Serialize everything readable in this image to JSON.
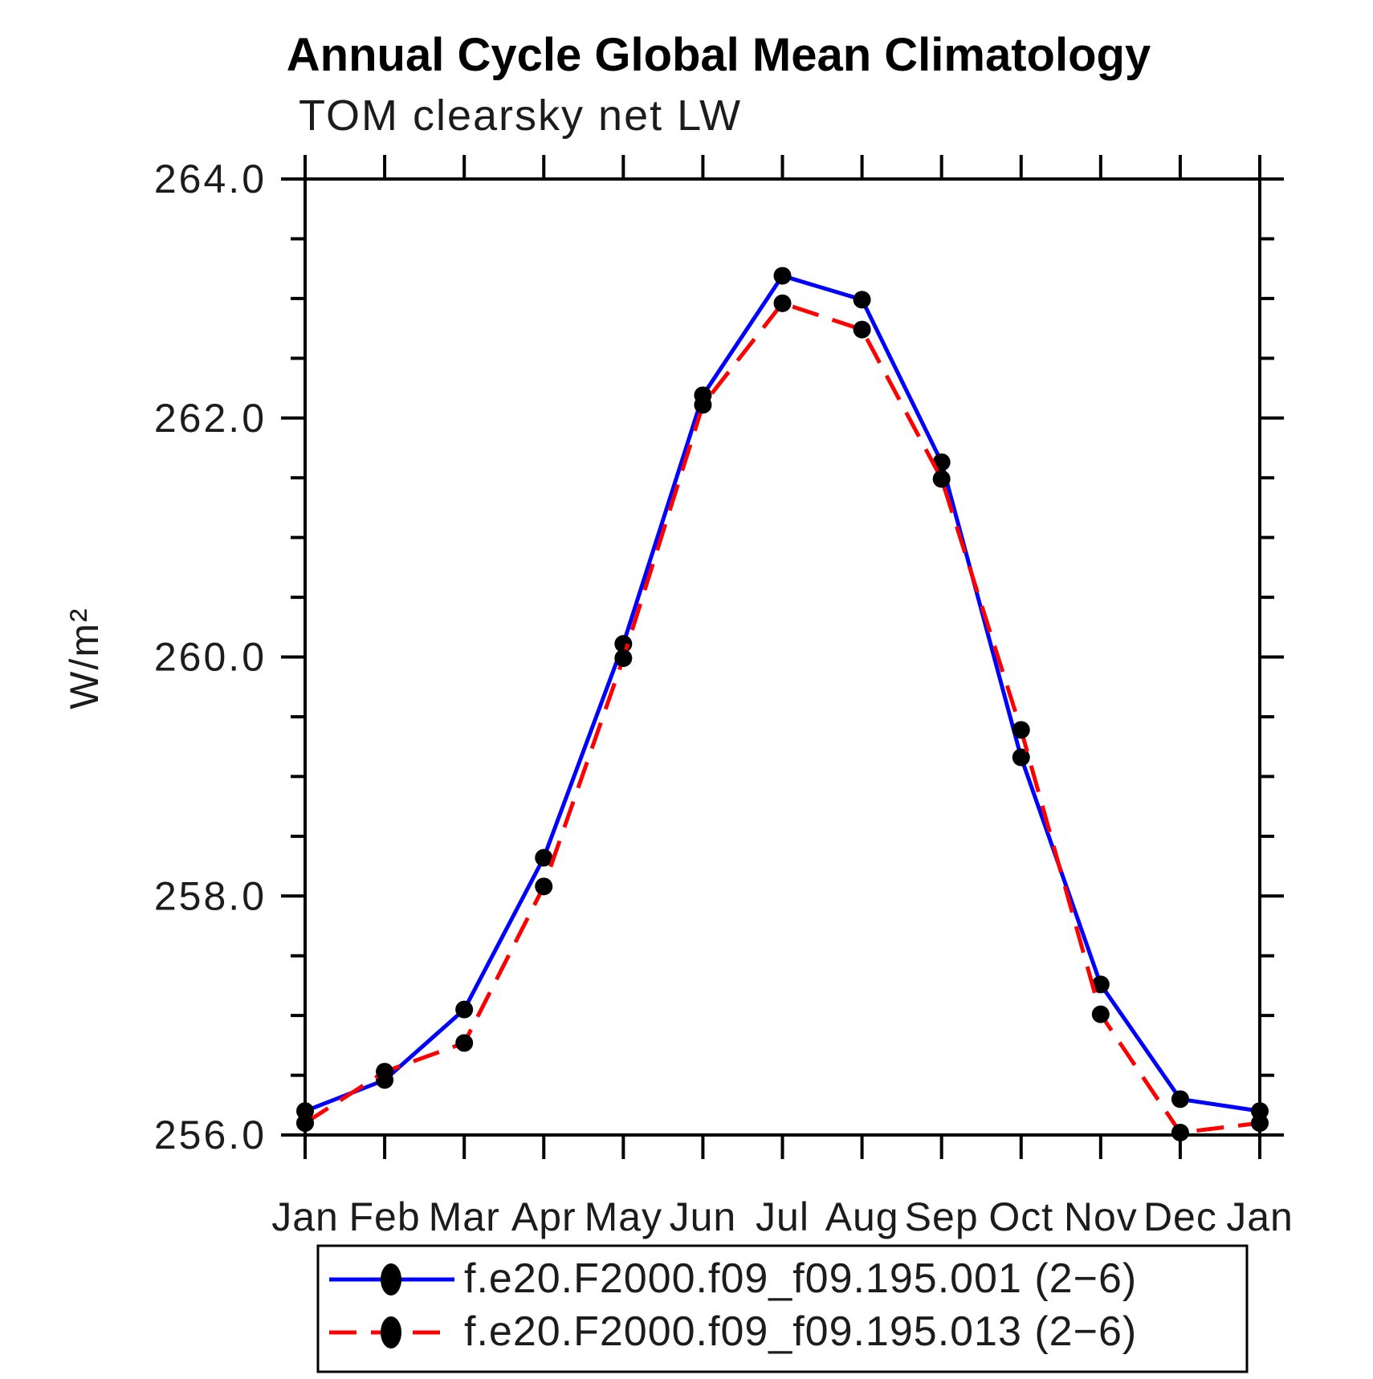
{
  "page": {
    "background_color": "#ffffff",
    "text_color": "#000000"
  },
  "chart_data": {
    "type": "line",
    "title": "Annual Cycle Global Mean Climatology",
    "subtitle": "TOM clearsky net LW",
    "ylabel": "W/m²",
    "xlabel": "",
    "categories": [
      "Jan",
      "Feb",
      "Mar",
      "Apr",
      "May",
      "Jun",
      "Jul",
      "Aug",
      "Sep",
      "Oct",
      "Nov",
      "Dec",
      "Jan"
    ],
    "series": [
      {
        "name": "f.e20.F2000.f09_f09.195.001 (2−6)",
        "color": "#0000ff",
        "line_style": "solid",
        "marker": "filled-circle",
        "marker_color": "#000000",
        "values": [
          256.2,
          256.46,
          257.05,
          258.32,
          260.11,
          262.19,
          263.19,
          262.99,
          261.63,
          259.16,
          257.26,
          256.3,
          256.2
        ]
      },
      {
        "name": "f.e20.F2000.f09_f09.195.013 (2−6)",
        "color": "#ff0000",
        "line_style": "dashed",
        "marker": "filled-circle",
        "marker_color": "#000000",
        "values": [
          256.1,
          256.53,
          256.77,
          258.08,
          259.99,
          262.11,
          262.96,
          262.74,
          261.49,
          259.39,
          257.01,
          256.02,
          256.1
        ]
      }
    ],
    "ylim": [
      256.0,
      264.0
    ],
    "ytick_major_values": [
      256.0,
      258.0,
      260.0,
      262.0,
      264.0
    ],
    "ytick_major_labels": [
      "256.0",
      "258.0",
      "260.0",
      "262.0",
      "264.0"
    ],
    "ytick_minor_step": 0.5,
    "grid": "off",
    "legend_position": "bottom-box",
    "axis_color": "#000000"
  }
}
